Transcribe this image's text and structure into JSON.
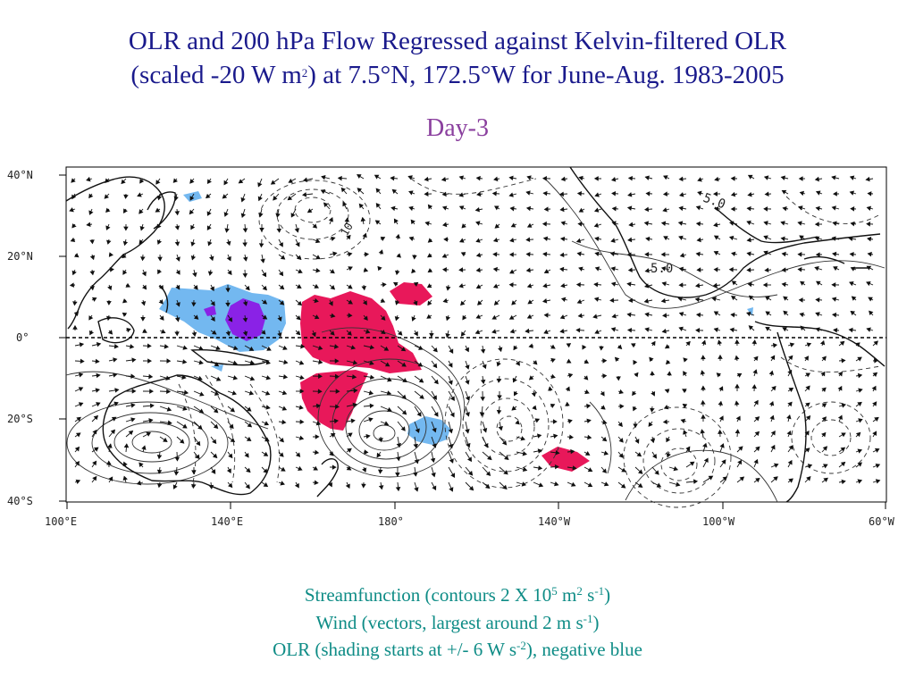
{
  "title": {
    "line1": "OLR and 200 hPa Flow Regressed against Kelvin-filtered OLR",
    "line2_a": "(scaled -20 W m",
    "line2_sup": "2",
    "line2_b": ") at 7.5°N, 172.5°W for June-Aug. 1983-2005",
    "subtitle": "Day-3"
  },
  "map": {
    "lat_labels": [
      "40°N",
      "20°N",
      "0°",
      "20°S",
      "40°S"
    ],
    "lon_labels": [
      "100°E",
      "140°E",
      "180°",
      "140°W",
      "100°W",
      "60°W"
    ],
    "contour_labels": [
      "5.0",
      "5.0",
      "10"
    ],
    "colors": {
      "positive": "#e8185a",
      "negative": "#73b8f0",
      "strong_negative": "#8a22e6",
      "land": "#222222"
    }
  },
  "caption": {
    "l1_a": "Streamfunction (contours 2 X 10",
    "l1_sup1": "5",
    "l1_b": " m",
    "l1_sup2": "2",
    "l1_c": " s",
    "l1_sup3": "-1",
    "l1_d": ")",
    "l2_a": "Wind (vectors, largest around 2 m s",
    "l2_sup": "-1",
    "l2_b": ")",
    "l3_a": "OLR (shading starts at +/- 6 W s",
    "l3_sup": "-2",
    "l3_b": "), negative blue"
  }
}
